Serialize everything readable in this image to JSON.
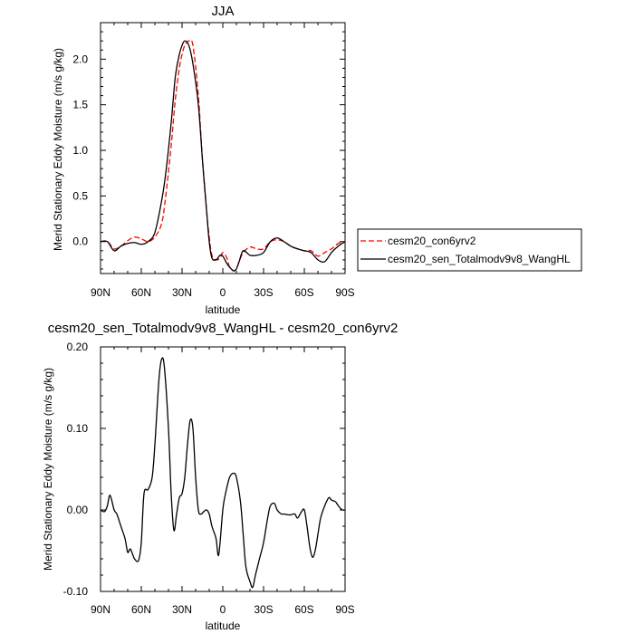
{
  "chart_data": [
    {
      "type": "line",
      "title": "JJA",
      "xlabel": "latitude",
      "ylabel": "Merid Stationary Eddy Moisture (m/s g/kg)",
      "xlim": [
        -90,
        90
      ],
      "ylim": [
        -0.35,
        2.4
      ],
      "xticks": [
        -90,
        -60,
        -30,
        0,
        30,
        60,
        90
      ],
      "xtick_labels": [
        "90N",
        "60N",
        "30N",
        "0",
        "30S",
        "60S",
        "90S"
      ],
      "yticks": [
        0.0,
        0.5,
        1.0,
        1.5,
        2.0
      ],
      "ytick_labels": [
        "0.0",
        "0.5",
        "1.0",
        "1.5",
        "2.0"
      ],
      "legend_position": "outside-right",
      "series": [
        {
          "name": "cesm20_con6yrv2",
          "color": "#ff0000",
          "dash": "dashed",
          "x": [
            -90,
            -85,
            -80,
            -75,
            -70,
            -65,
            -60,
            -55,
            -50,
            -45,
            -42,
            -38,
            -35,
            -32,
            -30,
            -28,
            -25,
            -22,
            -18,
            -15,
            -12,
            -10,
            -8,
            -5,
            -2,
            0,
            3,
            5,
            8,
            10,
            12,
            15,
            20,
            25,
            30,
            35,
            40,
            45,
            50,
            55,
            60,
            65,
            70,
            75,
            80,
            85,
            90
          ],
          "y": [
            0.0,
            0.0,
            -0.08,
            -0.05,
            0.01,
            0.05,
            0.03,
            0.0,
            0.05,
            0.2,
            0.5,
            1.05,
            1.55,
            1.9,
            2.05,
            2.15,
            2.2,
            2.15,
            1.6,
            0.9,
            0.35,
            0.05,
            -0.15,
            -0.2,
            -0.18,
            -0.12,
            -0.18,
            -0.28,
            -0.32,
            -0.3,
            -0.22,
            -0.12,
            -0.06,
            -0.08,
            -0.08,
            0.0,
            0.02,
            0.0,
            -0.05,
            -0.08,
            -0.1,
            -0.1,
            -0.16,
            -0.12,
            -0.08,
            -0.02,
            0.0
          ]
        },
        {
          "name": "cesm20_sen_Totalmodv9v8_WangHL",
          "color": "#000000",
          "dash": "solid",
          "x": [
            -90,
            -85,
            -80,
            -75,
            -70,
            -65,
            -60,
            -55,
            -50,
            -45,
            -42,
            -38,
            -35,
            -32,
            -30,
            -28,
            -25,
            -22,
            -18,
            -15,
            -12,
            -10,
            -8,
            -5,
            -2,
            0,
            3,
            5,
            8,
            10,
            12,
            15,
            20,
            25,
            30,
            35,
            40,
            45,
            50,
            55,
            60,
            65,
            70,
            75,
            80,
            85,
            90
          ],
          "y": [
            0.0,
            0.0,
            -0.1,
            -0.05,
            -0.02,
            -0.01,
            -0.03,
            0.0,
            0.1,
            0.45,
            0.75,
            1.3,
            1.8,
            2.05,
            2.15,
            2.2,
            2.15,
            1.95,
            1.5,
            0.9,
            0.35,
            0.0,
            -0.18,
            -0.2,
            -0.15,
            -0.16,
            -0.24,
            -0.28,
            -0.32,
            -0.3,
            -0.22,
            -0.1,
            -0.15,
            -0.15,
            -0.12,
            0.0,
            0.04,
            0.0,
            -0.05,
            -0.08,
            -0.1,
            -0.12,
            -0.2,
            -0.22,
            -0.12,
            -0.05,
            0.0
          ]
        }
      ]
    },
    {
      "type": "line",
      "title": "cesm20_sen_Totalmodv9v8_WangHL - cesm20_con6yrv2",
      "xlabel": "latitude",
      "ylabel": "Merid Stationary Eddy Moisture (m/s g/kg)",
      "xlim": [
        -90,
        90
      ],
      "ylim": [
        -0.1,
        0.2
      ],
      "xticks": [
        -90,
        -60,
        -30,
        0,
        30,
        60,
        90
      ],
      "xtick_labels": [
        "90N",
        "60N",
        "30N",
        "0",
        "30S",
        "60S",
        "90S"
      ],
      "yticks": [
        -0.1,
        0.0,
        0.1,
        0.2
      ],
      "ytick_labels": [
        "-0.10",
        "0.00",
        "0.10",
        "0.20"
      ],
      "series": [
        {
          "color": "#000000",
          "dash": "solid",
          "x": [
            -90,
            -87,
            -85,
            -83,
            -80,
            -78,
            -75,
            -72,
            -70,
            -68,
            -65,
            -62,
            -60,
            -58,
            -55,
            -52,
            -50,
            -47,
            -45,
            -43,
            -40,
            -38,
            -36,
            -34,
            -32,
            -30,
            -28,
            -26,
            -24,
            -22,
            -20,
            -18,
            -16,
            -14,
            -12,
            -10,
            -8,
            -5,
            -3,
            0,
            2,
            5,
            8,
            10,
            13,
            15,
            17,
            20,
            22,
            24,
            27,
            30,
            33,
            35,
            38,
            40,
            43,
            45,
            48,
            50,
            53,
            55,
            58,
            60,
            62,
            64,
            66,
            68,
            70,
            72,
            75,
            78,
            80,
            83,
            85,
            88,
            90
          ],
          "y": [
            0.0,
            -0.002,
            0.005,
            0.018,
            0.0,
            -0.005,
            -0.02,
            -0.035,
            -0.052,
            -0.048,
            -0.06,
            -0.062,
            -0.04,
            0.02,
            0.025,
            0.04,
            0.08,
            0.16,
            0.185,
            0.175,
            0.1,
            0.02,
            -0.025,
            -0.005,
            0.015,
            0.02,
            0.04,
            0.08,
            0.11,
            0.1,
            0.04,
            0.0,
            -0.005,
            -0.002,
            0.0,
            -0.005,
            -0.02,
            -0.035,
            -0.055,
            0.0,
            0.02,
            0.04,
            0.045,
            0.04,
            0.01,
            -0.03,
            -0.07,
            -0.088,
            -0.095,
            -0.08,
            -0.06,
            -0.04,
            -0.01,
            0.005,
            0.008,
            0.0,
            -0.005,
            -0.005,
            -0.006,
            -0.006,
            -0.005,
            -0.01,
            -0.002,
            0.0,
            -0.02,
            -0.045,
            -0.058,
            -0.05,
            -0.03,
            -0.01,
            0.005,
            0.015,
            0.012,
            0.01,
            0.005,
            0.0,
            0.0
          ]
        }
      ]
    }
  ]
}
